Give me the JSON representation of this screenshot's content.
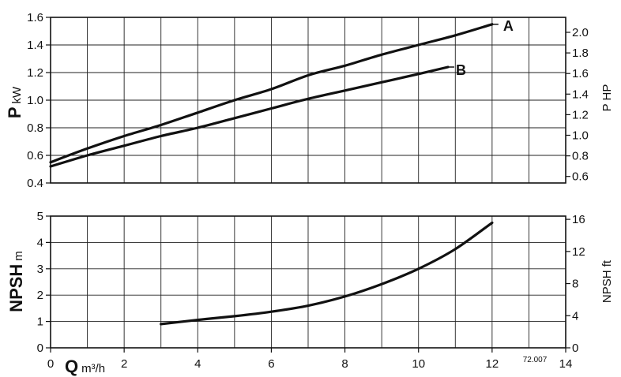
{
  "chart_data": [
    {
      "id": "power",
      "type": "line",
      "xlim": [
        0,
        14
      ],
      "ylim": [
        0.4,
        1.6
      ],
      "yticks": [
        "0.4",
        "0.6",
        "0.8",
        "1.0",
        "1.2",
        "1.4",
        "1.6"
      ],
      "ylabel": {
        "symbol": "P",
        "unit": "kW"
      },
      "y2label": "P HP",
      "y2ticks": [
        {
          "label": "0.6",
          "value": 0.6
        },
        {
          "label": "0.8",
          "value": 0.8
        },
        {
          "label": "1.0",
          "value": 1.0
        },
        {
          "label": "1.2",
          "value": 1.2
        },
        {
          "label": "1.4",
          "value": 1.4
        },
        {
          "label": "1.6",
          "value": 1.6
        },
        {
          "label": "1.8",
          "value": 1.8
        },
        {
          "label": "2.0",
          "value": 2.0
        }
      ],
      "y2_per_y": 1.341,
      "grid": true,
      "series": [
        {
          "name": "A",
          "x": [
            0,
            1,
            2,
            3,
            4,
            5,
            6,
            7,
            8,
            9,
            10,
            11,
            12
          ],
          "y": [
            0.55,
            0.65,
            0.74,
            0.82,
            0.91,
            1.0,
            1.08,
            1.18,
            1.25,
            1.33,
            1.4,
            1.47,
            1.55
          ]
        },
        {
          "name": "B",
          "x": [
            0,
            1,
            2,
            3,
            4,
            5,
            6,
            7,
            8,
            9,
            10,
            10.8
          ],
          "y": [
            0.52,
            0.6,
            0.67,
            0.74,
            0.8,
            0.87,
            0.94,
            1.01,
            1.07,
            1.13,
            1.19,
            1.24
          ]
        }
      ]
    },
    {
      "id": "npsh",
      "type": "line",
      "xlim": [
        0,
        14
      ],
      "ylim": [
        0,
        5
      ],
      "yticks": [
        "0",
        "1",
        "2",
        "3",
        "4",
        "5"
      ],
      "ylabel": {
        "symbol": "NPSH",
        "unit": "m"
      },
      "y2label": "NPSH ft",
      "y2ticks": [
        {
          "label": "0",
          "value": 0
        },
        {
          "label": "4",
          "value": 4
        },
        {
          "label": "8",
          "value": 8
        },
        {
          "label": "12",
          "value": 12
        },
        {
          "label": "16",
          "value": 16
        }
      ],
      "y2_per_y": 3.2808,
      "grid": true,
      "series": [
        {
          "x": [
            3,
            4,
            5,
            6,
            7,
            8,
            9,
            10,
            11,
            12
          ],
          "y": [
            0.9,
            1.06,
            1.2,
            1.37,
            1.6,
            1.95,
            2.42,
            3.0,
            3.75,
            4.75
          ]
        }
      ]
    }
  ],
  "xaxis": {
    "symbol": "Q",
    "unit": "m³/h",
    "ticks": [
      "0",
      "2",
      "4",
      "6",
      "8",
      "10",
      "12",
      "14"
    ]
  },
  "figure_code": "72.007"
}
